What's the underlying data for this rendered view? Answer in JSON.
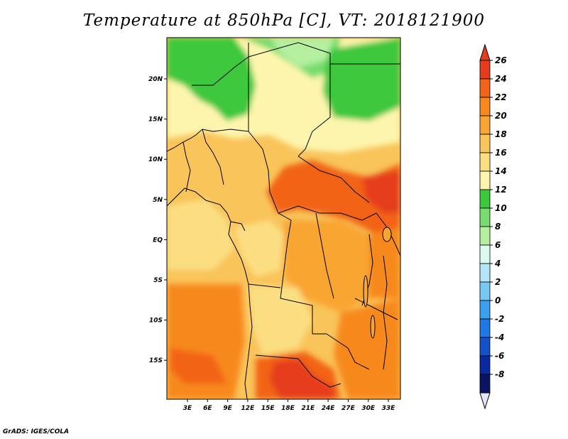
{
  "title": "Temperature at 850hPa [C], VT: 2018121900",
  "credit": "GrADS: IGES/COLA",
  "lon_ticks": [
    "3E",
    "6E",
    "9E",
    "12E",
    "15E",
    "18E",
    "21E",
    "24E",
    "27E",
    "30E",
    "33E"
  ],
  "lat_ticks": [
    "20N",
    "15N",
    "10N",
    "5N",
    "EQ",
    "5S",
    "10S",
    "15S"
  ],
  "colorbar": {
    "labels": [
      "26",
      "24",
      "22",
      "20",
      "18",
      "16",
      "14",
      "12",
      "10",
      "8",
      "6",
      "4",
      "2",
      "0",
      "-2",
      "-4",
      "-6",
      "-8"
    ],
    "colors": [
      "#e63c1e",
      "#f26419",
      "#f7891e",
      "#f9a532",
      "#f9c45a",
      "#fbde82",
      "#fdf5ad",
      "#3cc83c",
      "#78dc6e",
      "#b4f0a0",
      "#dcfaf0",
      "#b4e6fa",
      "#78c8f5",
      "#3ca0f0",
      "#1e78e6",
      "#1450c8",
      "#0a28a0",
      "#0a1464"
    ],
    "top_color": "#e63c1e",
    "bottom_color": "#e6e6fa"
  },
  "map_regions": {
    "background": "#f9c45a",
    "sahara_green": "#3cc83c",
    "light_green": "#78dc6e",
    "pale_green": "#b4f0a0",
    "pale_yellow": "#fdf5ad",
    "yellow": "#fbde82",
    "orange": "#f7891e",
    "dark_orange": "#f26419",
    "red": "#e63c1e",
    "light_orange": "#f9a532"
  }
}
